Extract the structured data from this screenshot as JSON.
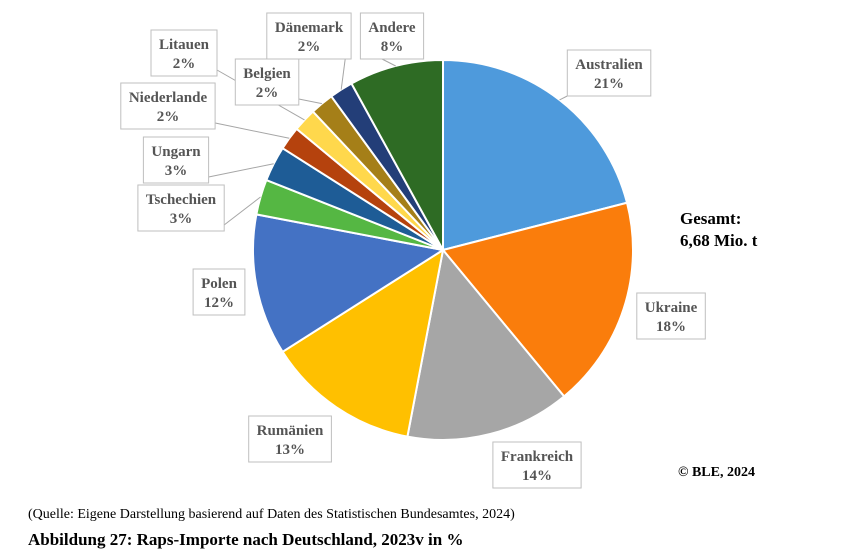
{
  "chart_data": {
    "type": "pie",
    "slices": [
      {
        "label": "Australien",
        "value": 21,
        "value_label": "21%",
        "color": "#4E9ADC"
      },
      {
        "label": "Ukraine",
        "value": 18,
        "value_label": "18%",
        "color": "#FA7D0C"
      },
      {
        "label": "Frankreich",
        "value": 14,
        "value_label": "14%",
        "color": "#A6A6A6"
      },
      {
        "label": "Rumänien",
        "value": 13,
        "value_label": "13%",
        "color": "#FFC000"
      },
      {
        "label": "Polen",
        "value": 12,
        "value_label": "12%",
        "color": "#4472C4"
      },
      {
        "label": "Tschechien",
        "value": 3,
        "value_label": "3%",
        "color": "#55B743"
      },
      {
        "label": "Ungarn",
        "value": 3,
        "value_label": "3%",
        "color": "#1E5C96"
      },
      {
        "label": "Niederlande",
        "value": 2,
        "value_label": "2%",
        "color": "#B5420D"
      },
      {
        "label": "Litauen",
        "value": 2,
        "value_label": "2%",
        "color": "#FFD84C"
      },
      {
        "label": "Belgien",
        "value": 2,
        "value_label": "2%",
        "color": "#A57F18"
      },
      {
        "label": "Dänemark",
        "value": 2,
        "value_label": "2%",
        "color": "#233E78"
      },
      {
        "label": "Andere",
        "value": 8,
        "value_label": "8%",
        "color": "#2E6B24"
      }
    ]
  },
  "total": {
    "line1": "Gesamt:",
    "line2": "6,68 Mio. t"
  },
  "copyright": "© BLE, 2024",
  "source": "(Quelle: Eigene Darstellung basierend auf Daten des Statistischen Bundesamtes, 2024)",
  "caption": "Abbildung 27: Raps-Importe nach Deutschland, 2023v in %"
}
